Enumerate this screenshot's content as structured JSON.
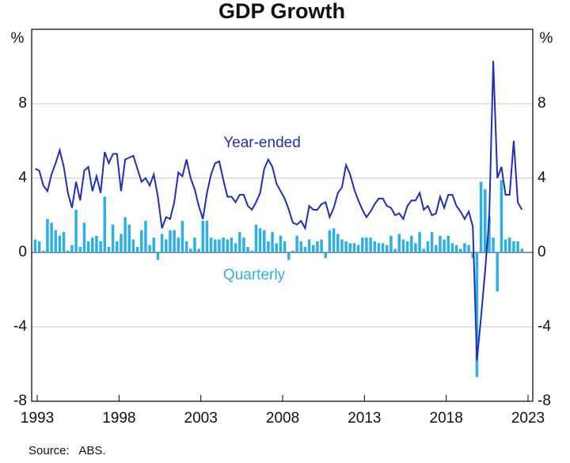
{
  "chart_data": {
    "type": "bar_line",
    "title": "GDP Growth",
    "y_label": "%",
    "source": "Source:   ABS.",
    "x": [
      1993.375,
      1993.625,
      1993.875,
      1994.125,
      1994.375,
      1994.625,
      1994.875,
      1995.125,
      1995.375,
      1995.625,
      1995.875,
      1996.125,
      1996.375,
      1996.625,
      1996.875,
      1997.125,
      1997.375,
      1997.625,
      1997.875,
      1998.125,
      1998.375,
      1998.625,
      1998.875,
      1999.125,
      1999.375,
      1999.625,
      1999.875,
      2000.125,
      2000.375,
      2000.625,
      2000.875,
      2001.125,
      2001.375,
      2001.625,
      2001.875,
      2002.125,
      2002.375,
      2002.625,
      2002.875,
      2003.125,
      2003.375,
      2003.625,
      2003.875,
      2004.125,
      2004.375,
      2004.625,
      2004.875,
      2005.125,
      2005.375,
      2005.625,
      2005.875,
      2006.125,
      2006.375,
      2006.625,
      2006.875,
      2007.125,
      2007.375,
      2007.625,
      2007.875,
      2008.125,
      2008.375,
      2008.625,
      2008.875,
      2009.125,
      2009.375,
      2009.625,
      2009.875,
      2010.125,
      2010.375,
      2010.625,
      2010.875,
      2011.125,
      2011.375,
      2011.625,
      2011.875,
      2012.125,
      2012.375,
      2012.625,
      2012.875,
      2013.125,
      2013.375,
      2013.625,
      2013.875,
      2014.125,
      2014.375,
      2014.625,
      2014.875,
      2015.125,
      2015.375,
      2015.625,
      2015.875,
      2016.125,
      2016.375,
      2016.625,
      2016.875,
      2017.125,
      2017.375,
      2017.625,
      2017.875,
      2018.125,
      2018.375,
      2018.625,
      2018.875,
      2019.125,
      2019.375,
      2019.625,
      2019.875,
      2020.125,
      2020.375,
      2020.625,
      2020.875,
      2021.125,
      2021.375,
      2021.625,
      2021.875,
      2022.125,
      2022.375,
      2022.625,
      2022.875,
      2023.125
    ],
    "series": [
      {
        "name": "Quarterly",
        "type": "bar",
        "color": "#2fb0e2",
        "values": [
          0.7,
          0.6,
          0.1,
          1.8,
          1.6,
          1.2,
          0.9,
          1.1,
          0.1,
          0.4,
          2.3,
          0.3,
          1.6,
          0.6,
          0.8,
          0.9,
          0.6,
          3.0,
          0.3,
          1.5,
          0.6,
          1.0,
          1.9,
          1.5,
          0.7,
          0.3,
          1.2,
          1.7,
          0.4,
          0.8,
          -0.4,
          1.0,
          0.7,
          1.2,
          1.2,
          0.8,
          1.7,
          0.6,
          0.2,
          0.8,
          0.2,
          1.7,
          1.7,
          0.8,
          0.7,
          0.7,
          0.8,
          0.7,
          0.8,
          0.5,
          1.1,
          0.8,
          0.3,
          0.1,
          1.5,
          1.3,
          1.2,
          0.6,
          1.1,
          0.5,
          0.9,
          0.6,
          -0.4,
          0.1,
          0.9,
          0.6,
          0.3,
          0.7,
          0.4,
          0.6,
          0.7,
          -0.3,
          1.2,
          1.3,
          1.0,
          0.7,
          0.6,
          0.5,
          0.5,
          0.4,
          0.8,
          0.8,
          0.8,
          0.6,
          0.5,
          0.5,
          0.4,
          0.9,
          0.2,
          1.0,
          0.7,
          0.6,
          0.9,
          0.5,
          1.1,
          0.2,
          0.6,
          1.1,
          0.4,
          0.9,
          0.7,
          0.9,
          0.5,
          0.4,
          0.2,
          0.5,
          0.4,
          -0.3,
          -6.7,
          3.8,
          3.4,
          1.9,
          0.8,
          -2.1,
          3.9,
          0.7,
          0.8,
          0.6,
          0.6,
          0.2
        ]
      },
      {
        "name": "Year-ended",
        "type": "line",
        "color": "#1f2fb8",
        "values": [
          4.5,
          4.4,
          3.6,
          3.3,
          4.2,
          4.8,
          5.5,
          4.6,
          3.2,
          2.4,
          3.8,
          2.8,
          4.4,
          4.6,
          3.3,
          4.1,
          3.2,
          5.4,
          4.8,
          5.3,
          5.3,
          3.3,
          5.0,
          5.1,
          5.2,
          4.5,
          3.8,
          4.0,
          3.6,
          4.2,
          3.0,
          1.3,
          1.9,
          1.8,
          2.7,
          4.3,
          4.1,
          5.0,
          4.0,
          3.4,
          2.5,
          1.8,
          3.2,
          4.2,
          4.8,
          4.9,
          3.9,
          3.0,
          3.0,
          2.7,
          3.1,
          3.1,
          2.5,
          2.3,
          2.7,
          3.2,
          4.5,
          5.0,
          4.6,
          3.7,
          3.3,
          2.9,
          2.3,
          1.6,
          1.5,
          1.7,
          1.3,
          2.5,
          2.3,
          2.3,
          2.6,
          2.7,
          1.9,
          2.4,
          3.2,
          3.5,
          4.7,
          4.2,
          3.4,
          2.8,
          2.3,
          1.9,
          2.2,
          2.6,
          2.9,
          2.9,
          2.5,
          2.4,
          2.0,
          2.1,
          1.8,
          2.5,
          2.8,
          2.8,
          3.2,
          2.3,
          2.5,
          2.0,
          2.1,
          3.0,
          2.4,
          3.1,
          3.1,
          2.5,
          2.2,
          1.8,
          2.2,
          1.4,
          -5.8,
          -3.5,
          -1.0,
          1.8,
          10.3,
          4.0,
          4.6,
          3.1,
          3.1,
          6.0,
          2.7,
          2.3
        ]
      }
    ],
    "xlim": [
      1993.16,
      2023.79
    ],
    "xticks": [
      {
        "value": 1993.5,
        "label": "1993"
      },
      {
        "value": 1998.5,
        "label": "1998"
      },
      {
        "value": 2003.5,
        "label": "2003"
      },
      {
        "value": 2008.5,
        "label": "2008"
      },
      {
        "value": 2013.5,
        "label": "2013"
      },
      {
        "value": 2018.5,
        "label": "2018"
      },
      {
        "value": 2023.5,
        "label": "2023"
      }
    ],
    "ylim": [
      -8,
      12
    ],
    "yticks": [
      -8,
      -4,
      0,
      4,
      8
    ],
    "grid": true
  }
}
